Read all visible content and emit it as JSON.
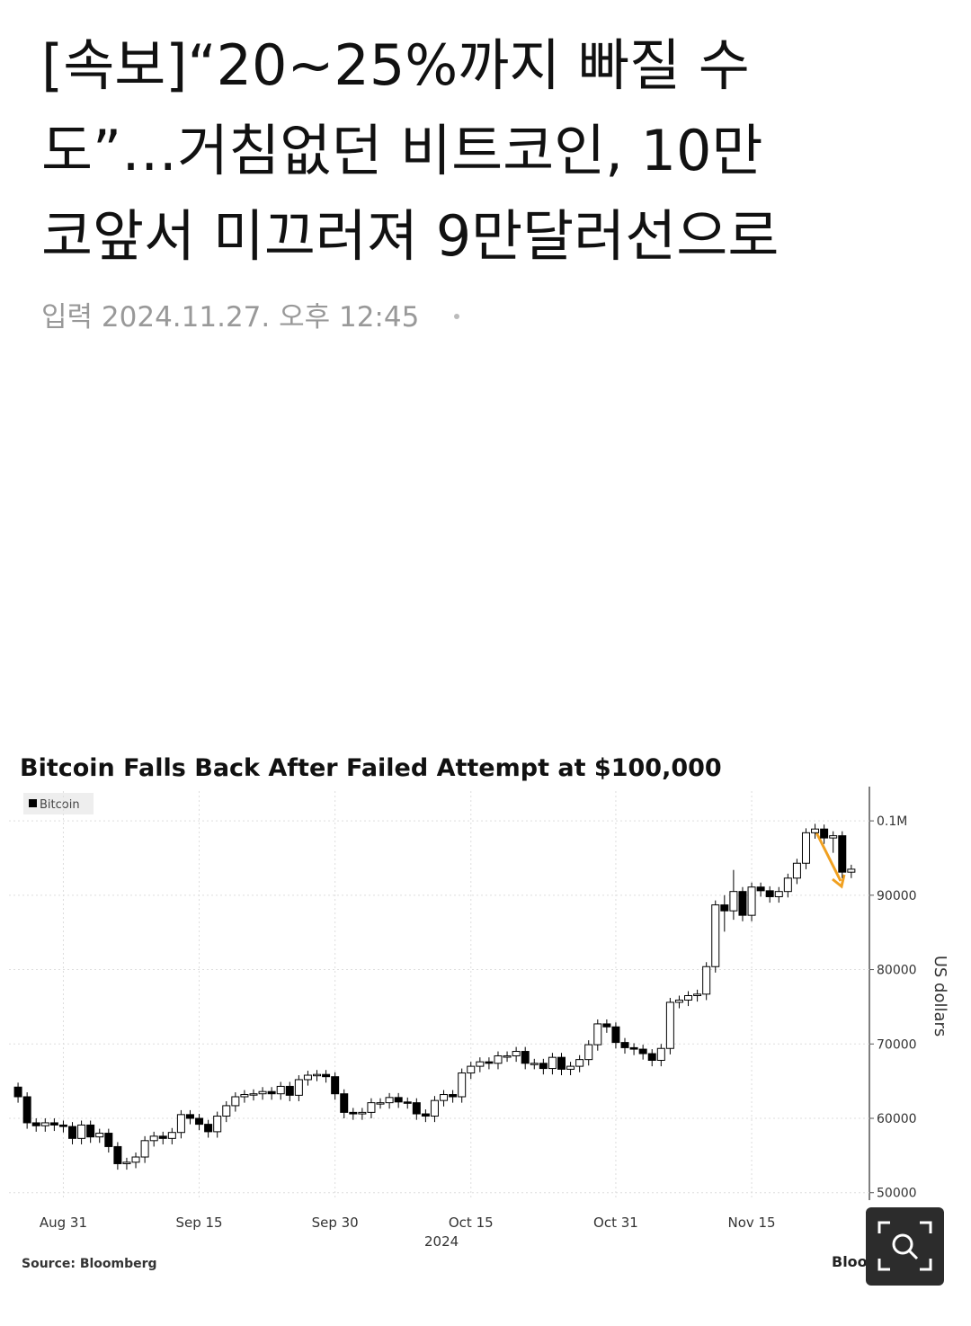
{
  "header": {
    "title_lines": [
      "[속보]“20~25%까지 빠질 수",
      "도”…거침없던 비트코인, 10만",
      "코앞서 미끄러져 9만달러선으로"
    ],
    "date": "입력 2024.11.27. 오후 12:45"
  },
  "chart_data": {
    "type": "candlestick",
    "title": "Bitcoin Falls Back After Failed Attempt at $100,000",
    "x": [
      "2024-08-26",
      "2024-08-27",
      "2024-08-28",
      "2024-08-29",
      "2024-08-30",
      "2024-08-31",
      "2024-09-01",
      "2024-09-02",
      "2024-09-03",
      "2024-09-04",
      "2024-09-05",
      "2024-09-06",
      "2024-09-07",
      "2024-09-08",
      "2024-09-09",
      "2024-09-10",
      "2024-09-11",
      "2024-09-12",
      "2024-09-13",
      "2024-09-14",
      "2024-09-15",
      "2024-09-16",
      "2024-09-17",
      "2024-09-18",
      "2024-09-19",
      "2024-09-20",
      "2024-09-21",
      "2024-09-22",
      "2024-09-23",
      "2024-09-24",
      "2024-09-25",
      "2024-09-26",
      "2024-09-27",
      "2024-09-28",
      "2024-09-29",
      "2024-09-30",
      "2024-10-01",
      "2024-10-02",
      "2024-10-03",
      "2024-10-04",
      "2024-10-05",
      "2024-10-06",
      "2024-10-07",
      "2024-10-08",
      "2024-10-09",
      "2024-10-10",
      "2024-10-11",
      "2024-10-12",
      "2024-10-13",
      "2024-10-14",
      "2024-10-15",
      "2024-10-16",
      "2024-10-17",
      "2024-10-18",
      "2024-10-19",
      "2024-10-20",
      "2024-10-21",
      "2024-10-22",
      "2024-10-23",
      "2024-10-24",
      "2024-10-25",
      "2024-10-26",
      "2024-10-27",
      "2024-10-28",
      "2024-10-29",
      "2024-10-30",
      "2024-10-31",
      "2024-11-01",
      "2024-11-02",
      "2024-11-03",
      "2024-11-04",
      "2024-11-05",
      "2024-11-06",
      "2024-11-07",
      "2024-11-08",
      "2024-11-09",
      "2024-11-10",
      "2024-11-11",
      "2024-11-12",
      "2024-11-13",
      "2024-11-14",
      "2024-11-15",
      "2024-11-16",
      "2024-11-17",
      "2024-11-18",
      "2024-11-19",
      "2024-11-20",
      "2024-11-21",
      "2024-11-22",
      "2024-11-23",
      "2024-11-24",
      "2024-11-25",
      "2024-11-26"
    ],
    "series": [
      {
        "name": "Bitcoin",
        "color": "#000000",
        "up_color": "#ffffff",
        "open": [
          64200,
          62900,
          59400,
          59000,
          59400,
          59100,
          58900,
          57300,
          59100,
          57500,
          58000,
          56200,
          53900,
          54100,
          54800,
          57000,
          57600,
          57300,
          58100,
          60500,
          60000,
          59200,
          58200,
          60300,
          61700,
          62900,
          63200,
          63300,
          63600,
          63300,
          64300,
          63100,
          65200,
          65800,
          65900,
          65600,
          63300,
          60800,
          60600,
          60800,
          62100,
          62100,
          62800,
          62200,
          62100,
          60600,
          60300,
          62400,
          63200,
          62900,
          66100,
          67000,
          67600,
          67400,
          68400,
          68400,
          69000,
          67400,
          67400,
          66700,
          68200,
          66600,
          67000,
          67900,
          69900,
          72700,
          72300,
          70200,
          69500,
          69300,
          68700,
          67800,
          69400,
          75600,
          75900,
          76500,
          76700,
          80400,
          88700,
          87900,
          90500,
          87300,
          91100,
          90600,
          89800,
          90500,
          92300,
          94300,
          98400,
          98900,
          97700,
          98000,
          93100
        ],
        "high": [
          64800,
          63500,
          60000,
          60000,
          60000,
          59700,
          59500,
          59700,
          59700,
          58600,
          58600,
          56800,
          54700,
          55400,
          57600,
          58200,
          58200,
          58700,
          61100,
          61100,
          60600,
          59800,
          60900,
          62300,
          63500,
          63800,
          63900,
          64200,
          64200,
          64900,
          64900,
          65800,
          66400,
          66500,
          66500,
          66200,
          63900,
          61400,
          61400,
          62700,
          62700,
          63400,
          63400,
          62800,
          62700,
          61200,
          63000,
          63800,
          63800,
          66700,
          67600,
          68200,
          68200,
          69000,
          69000,
          69600,
          69600,
          68000,
          68000,
          68800,
          68800,
          67600,
          68500,
          70500,
          73300,
          73300,
          72900,
          70800,
          70100,
          69900,
          69300,
          70000,
          76200,
          76500,
          77100,
          77300,
          81000,
          89300,
          90000,
          93400,
          91100,
          91700,
          91700,
          91200,
          91100,
          92900,
          94900,
          99000,
          99600,
          99500,
          98600,
          98600,
          94100
        ],
        "low": [
          62100,
          58600,
          58200,
          58200,
          58300,
          58100,
          56500,
          56500,
          56700,
          56700,
          55400,
          53100,
          53100,
          53300,
          54000,
          56200,
          56500,
          56500,
          57300,
          59200,
          58400,
          57400,
          57400,
          59500,
          60900,
          62100,
          62400,
          62500,
          62500,
          62500,
          62300,
          62300,
          64400,
          65000,
          64800,
          62500,
          60000,
          59800,
          59800,
          60000,
          61300,
          61300,
          61400,
          61300,
          59800,
          59500,
          59500,
          61600,
          62100,
          62100,
          65300,
          66200,
          66600,
          66600,
          67600,
          67600,
          66600,
          66600,
          65900,
          65900,
          65800,
          65800,
          66200,
          67100,
          69100,
          71500,
          69400,
          68700,
          68500,
          67900,
          67000,
          67000,
          68600,
          74800,
          75100,
          75700,
          75900,
          79600,
          85100,
          86700,
          86500,
          86500,
          89800,
          89000,
          89000,
          89700,
          91500,
          93500,
          97600,
          96900,
          95700,
          92300,
          92300
        ],
        "close": [
          62900,
          59400,
          59000,
          59400,
          59100,
          58900,
          57300,
          59100,
          57500,
          58000,
          56200,
          53900,
          54100,
          54800,
          57000,
          57600,
          57300,
          58100,
          60500,
          60000,
          59200,
          58200,
          60300,
          61700,
          62900,
          63200,
          63300,
          63600,
          63300,
          64300,
          63100,
          65200,
          65800,
          65900,
          65600,
          63300,
          60800,
          60600,
          60800,
          62100,
          62100,
          62800,
          62200,
          62100,
          60600,
          60300,
          62400,
          63200,
          62900,
          66100,
          67000,
          67600,
          67400,
          68400,
          68400,
          69000,
          67400,
          67400,
          66700,
          68200,
          66600,
          67000,
          67900,
          69900,
          72700,
          72300,
          70200,
          69500,
          69300,
          68700,
          67800,
          69400,
          75600,
          75900,
          76500,
          76700,
          80400,
          88700,
          87900,
          90500,
          87300,
          91100,
          90600,
          89800,
          90500,
          92300,
          94300,
          98400,
          98900,
          97700,
          98000,
          93100,
          93500
        ]
      }
    ],
    "xlim": [
      "2024-08-25",
      "2024-11-28"
    ],
    "xticks": [
      {
        "value": "2024-08-31",
        "label": "Aug 31"
      },
      {
        "value": "2024-09-15",
        "label": "Sep 15"
      },
      {
        "value": "2024-09-30",
        "label": "Sep 30"
      },
      {
        "value": "2024-10-15",
        "label": "Oct 15"
      },
      {
        "value": "2024-10-31",
        "label": "Oct 31"
      },
      {
        "value": "2024-11-15",
        "label": "Nov 15"
      }
    ],
    "xlabel": "2024",
    "ylim": [
      49000,
      104000
    ],
    "yticks": [
      50000,
      60000,
      70000,
      80000,
      90000,
      {
        "value": 100000,
        "label": "0.1M"
      }
    ],
    "ylabel": "US dollars",
    "y_axis_side": "right",
    "grid": true,
    "legend": "top-left",
    "source": "Source: Bloomberg",
    "logo": "Bloomberg"
  }
}
